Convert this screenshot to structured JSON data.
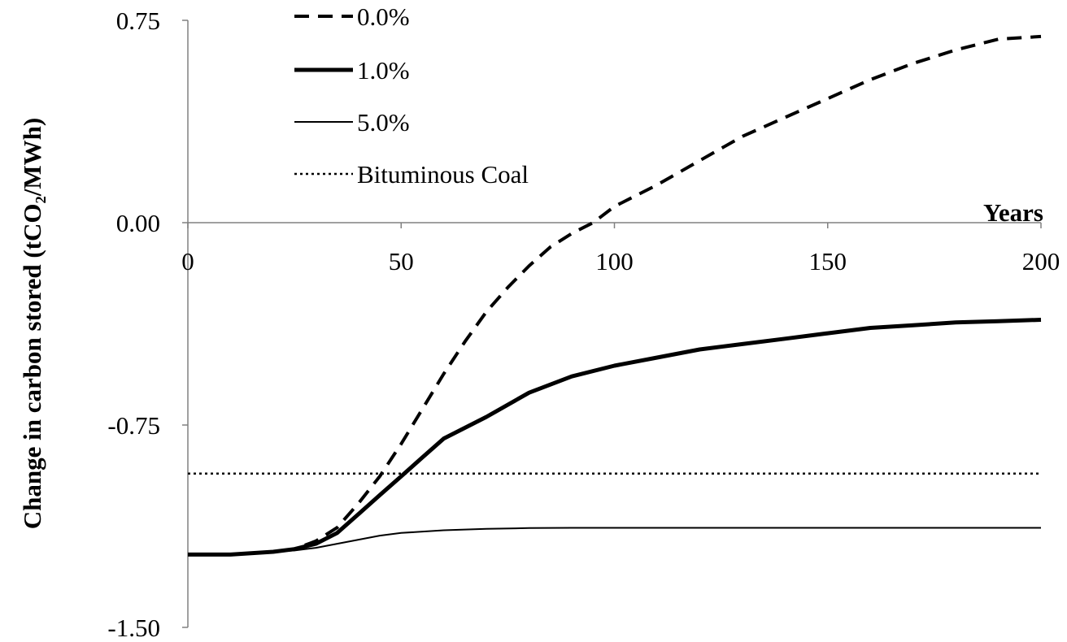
{
  "chart_data": {
    "type": "line",
    "xlabel": "Years",
    "ylabel": "Change in carbon stored (tCO₂/MWh)",
    "xlim": [
      0,
      200
    ],
    "ylim": [
      -1.5,
      0.75
    ],
    "x_ticks": [
      "0",
      "50",
      "100",
      "150",
      "200"
    ],
    "y_ticks": [
      "0.75",
      "0.00",
      "-0.75",
      "-1.50"
    ],
    "grid": false,
    "legend_position": "top-left",
    "series": [
      {
        "name": "0.0%",
        "style": "dashed",
        "x": [
          0,
          10,
          20,
          25,
          30,
          35,
          40,
          45,
          50,
          55,
          60,
          65,
          70,
          75,
          80,
          85,
          90,
          95,
          100,
          110,
          120,
          130,
          140,
          150,
          160,
          170,
          180,
          190,
          200
        ],
        "y": [
          -1.23,
          -1.23,
          -1.22,
          -1.21,
          -1.18,
          -1.13,
          -1.04,
          -0.94,
          -0.82,
          -0.69,
          -0.56,
          -0.44,
          -0.33,
          -0.24,
          -0.16,
          -0.09,
          -0.04,
          0.0,
          0.06,
          0.14,
          0.23,
          0.32,
          0.39,
          0.46,
          0.53,
          0.59,
          0.64,
          0.68,
          0.69
        ]
      },
      {
        "name": "1.0%",
        "style": "thick",
        "x": [
          0,
          10,
          20,
          25,
          30,
          35,
          40,
          45,
          50,
          55,
          60,
          70,
          80,
          90,
          100,
          110,
          120,
          130,
          140,
          150,
          160,
          170,
          180,
          190,
          200
        ],
        "y": [
          -1.23,
          -1.23,
          -1.22,
          -1.21,
          -1.19,
          -1.15,
          -1.08,
          -1.01,
          -0.94,
          -0.87,
          -0.8,
          -0.72,
          -0.63,
          -0.57,
          -0.53,
          -0.5,
          -0.47,
          -0.45,
          -0.43,
          -0.41,
          -0.39,
          -0.38,
          -0.37,
          -0.365,
          -0.36
        ]
      },
      {
        "name": "5.0%",
        "style": "thin",
        "x": [
          0,
          10,
          20,
          25,
          30,
          35,
          40,
          45,
          50,
          60,
          70,
          80,
          90,
          100,
          120,
          150,
          200
        ],
        "y": [
          -1.23,
          -1.23,
          -1.22,
          -1.215,
          -1.205,
          -1.19,
          -1.175,
          -1.16,
          -1.15,
          -1.14,
          -1.135,
          -1.132,
          -1.131,
          -1.131,
          -1.131,
          -1.131,
          -1.131
        ]
      },
      {
        "name": "Bituminous Coal",
        "style": "dotted",
        "x": [
          0,
          200
        ],
        "y": [
          -0.93,
          -0.93
        ]
      }
    ]
  }
}
